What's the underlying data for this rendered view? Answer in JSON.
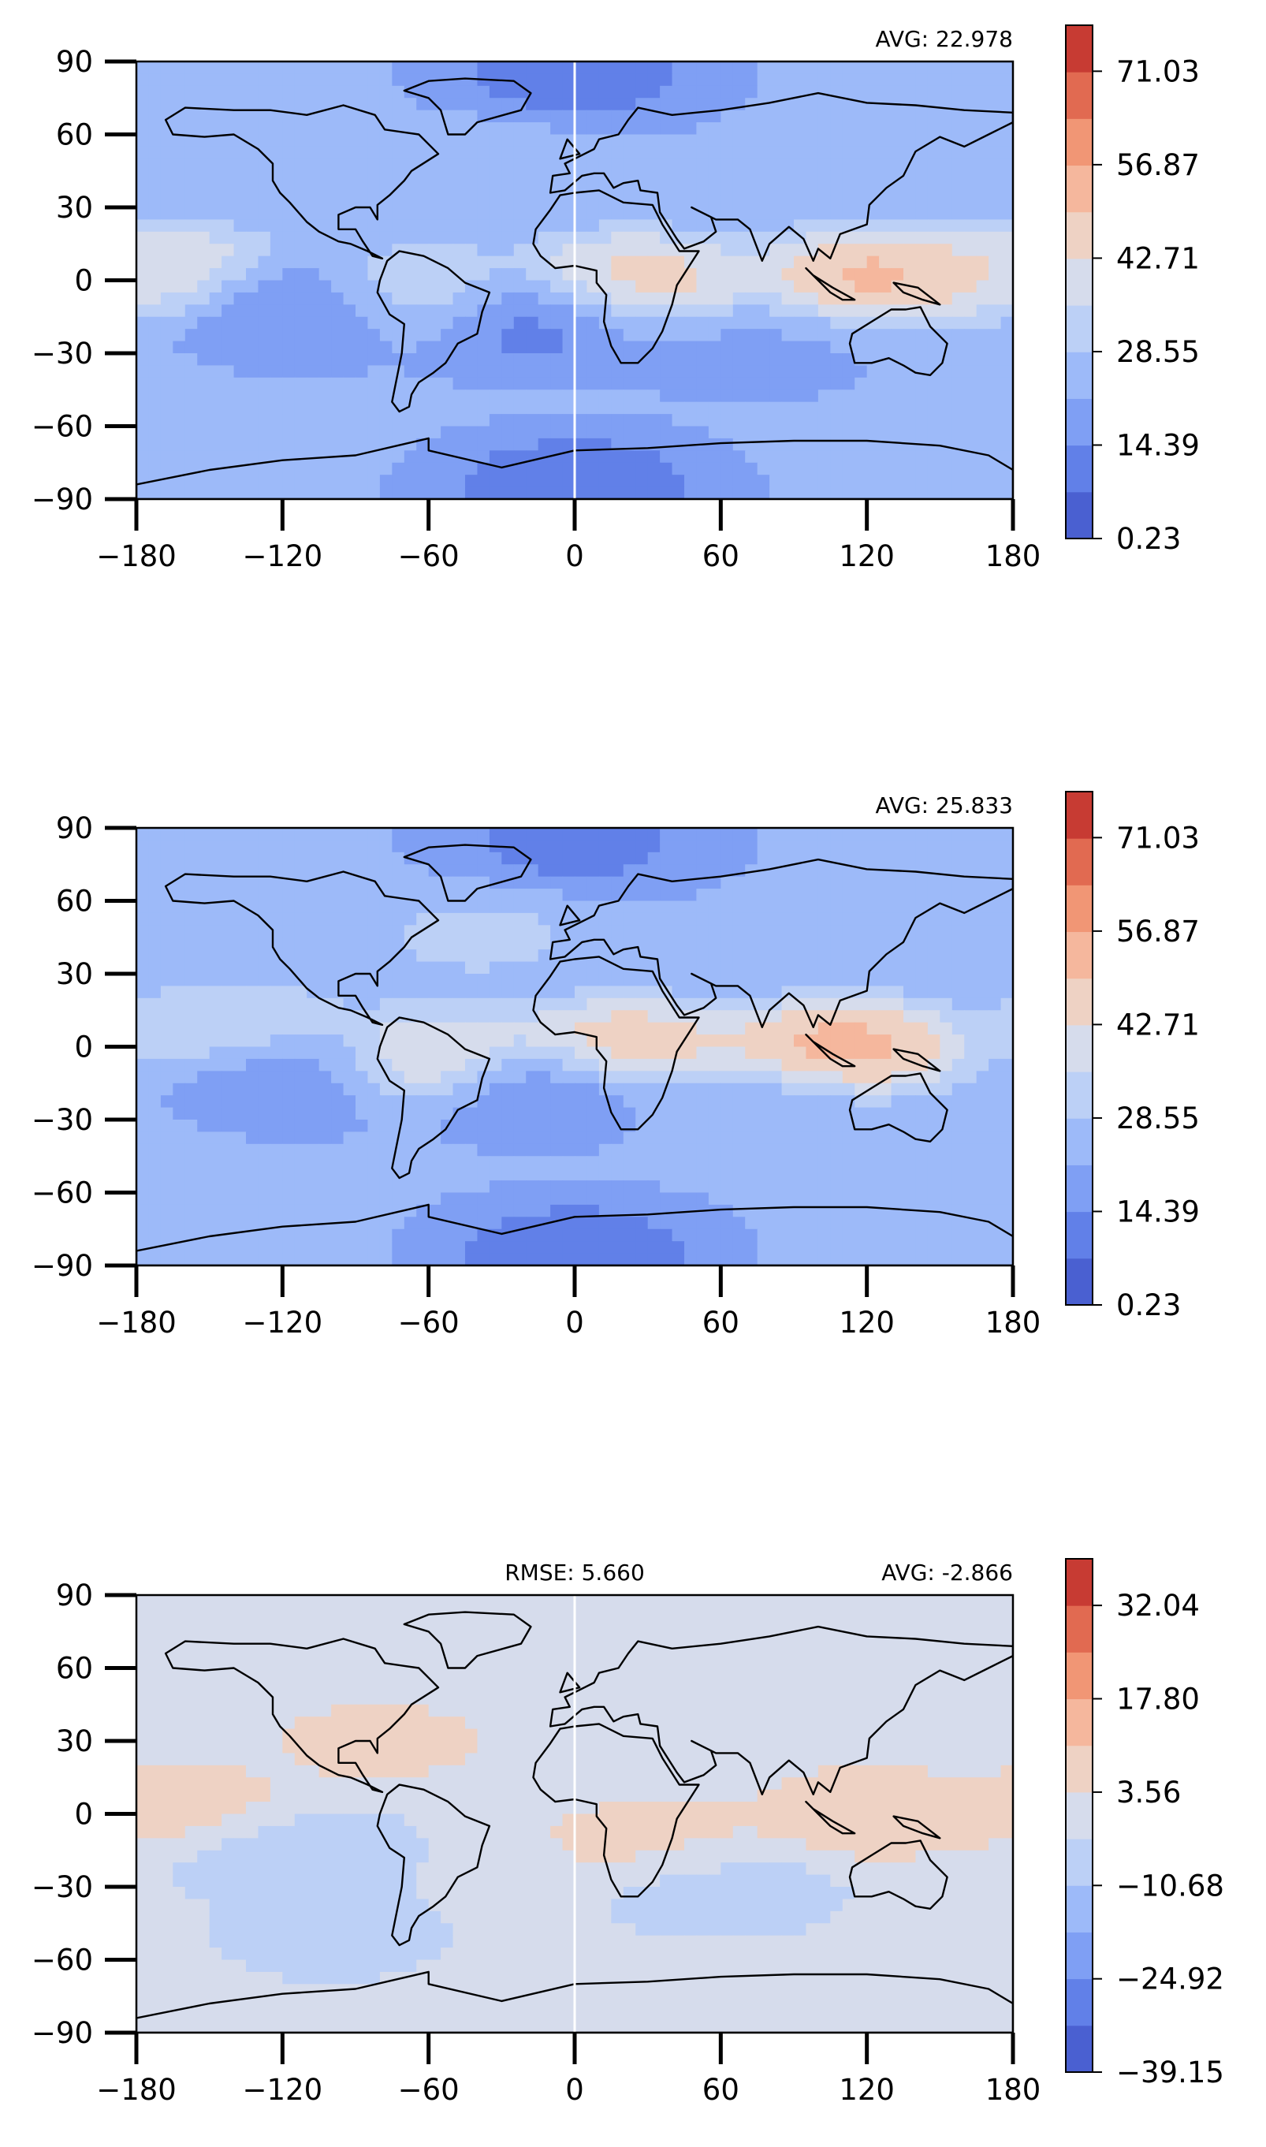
{
  "chart_data": [
    {
      "type": "heatmap",
      "title": "",
      "annotations": {
        "left": "",
        "right": "AVG: 22.978"
      },
      "xlabel": "",
      "ylabel": "",
      "xlim": [
        -180,
        180
      ],
      "ylim": [
        -90,
        90
      ],
      "xticks": [
        "−180",
        "−120",
        "−60",
        "0",
        "60",
        "120",
        "180"
      ],
      "yticks": [
        "90",
        "60",
        "30",
        "0",
        "−30",
        "−60",
        "−90"
      ],
      "colorbar": {
        "min": 0.23,
        "max": 78.0,
        "ticks": [
          "71.03",
          "56.87",
          "42.71",
          "28.55",
          "14.39",
          "0.23"
        ],
        "tick_values": [
          71.03,
          56.87,
          42.71,
          28.55,
          14.39,
          0.23
        ]
      },
      "colormap": "coolwarm",
      "meridian_line": true,
      "grid": false,
      "features": [
        {
          "lon": 25,
          "lat": 0,
          "value": 52
        },
        {
          "lon": 125,
          "lat": 2,
          "value": 58
        },
        {
          "lon": -65,
          "lat": -5,
          "value": 40
        },
        {
          "lon": -170,
          "lat": 5,
          "value": 46
        },
        {
          "lon": -110,
          "lat": -10,
          "value": 10
        },
        {
          "lon": -20,
          "lat": -15,
          "value": 8
        },
        {
          "lon": 70,
          "lat": -30,
          "value": 20
        },
        {
          "lon": -40,
          "lat": 45,
          "value": 30
        },
        {
          "lon": 0,
          "lat": -85,
          "value": 4
        },
        {
          "lon": 0,
          "lat": 85,
          "value": 8
        }
      ]
    },
    {
      "type": "heatmap",
      "title": "",
      "annotations": {
        "left": "",
        "right": "AVG: 25.833"
      },
      "xlabel": "",
      "ylabel": "",
      "xlim": [
        -180,
        180
      ],
      "ylim": [
        -90,
        90
      ],
      "xticks": [
        "−180",
        "−120",
        "−60",
        "0",
        "60",
        "120",
        "180"
      ],
      "yticks": [
        "90",
        "60",
        "30",
        "0",
        "−30",
        "−60",
        "−90"
      ],
      "colorbar": {
        "min": 0.23,
        "max": 78.0,
        "ticks": [
          "71.03",
          "56.87",
          "42.71",
          "28.55",
          "14.39",
          "0.23"
        ],
        "tick_values": [
          71.03,
          56.87,
          42.71,
          28.55,
          14.39,
          0.23
        ]
      },
      "colormap": "coolwarm",
      "meridian_line": false,
      "grid": false,
      "features": [
        {
          "lon": 20,
          "lat": 0,
          "value": 55
        },
        {
          "lon": 110,
          "lat": 0,
          "value": 60
        },
        {
          "lon": -60,
          "lat": -5,
          "value": 52
        },
        {
          "lon": -140,
          "lat": 8,
          "value": 38
        },
        {
          "lon": -110,
          "lat": -10,
          "value": 12
        },
        {
          "lon": -15,
          "lat": -15,
          "value": 10
        },
        {
          "lon": 70,
          "lat": -25,
          "value": 24
        },
        {
          "lon": -40,
          "lat": 45,
          "value": 32
        },
        {
          "lon": 0,
          "lat": -85,
          "value": 5
        },
        {
          "lon": 0,
          "lat": 85,
          "value": 9
        }
      ]
    },
    {
      "type": "heatmap",
      "title": "",
      "annotations": {
        "left": "RMSE: 5.660",
        "right": "AVG: -2.866"
      },
      "xlabel": "",
      "ylabel": "",
      "xlim": [
        -180,
        180
      ],
      "ylim": [
        -90,
        90
      ],
      "xticks": [
        "−180",
        "−120",
        "−60",
        "0",
        "60",
        "120",
        "180"
      ],
      "yticks": [
        "90",
        "60",
        "30",
        "0",
        "−30",
        "−60",
        "−90"
      ],
      "colorbar": {
        "min": -39.15,
        "max": 39.15,
        "ticks": [
          "32.04",
          "17.80",
          "3.56",
          "−10.68",
          "−24.92",
          "−39.15"
        ],
        "tick_values": [
          32.04,
          17.8,
          3.56,
          -10.68,
          -24.92,
          -39.15
        ]
      },
      "colormap": "coolwarm",
      "meridian_line": true,
      "grid": false,
      "features": [
        {
          "lon": 120,
          "lat": 0,
          "value": 12
        },
        {
          "lon": -160,
          "lat": 2,
          "value": 10
        },
        {
          "lon": 30,
          "lat": -10,
          "value": 8
        },
        {
          "lon": -80,
          "lat": 30,
          "value": 8
        },
        {
          "lon": -120,
          "lat": -15,
          "value": -10
        },
        {
          "lon": 60,
          "lat": -30,
          "value": -8
        },
        {
          "lon": -100,
          "lat": -50,
          "value": -6
        },
        {
          "lon": 0,
          "lat": 70,
          "value": 1
        }
      ]
    }
  ]
}
